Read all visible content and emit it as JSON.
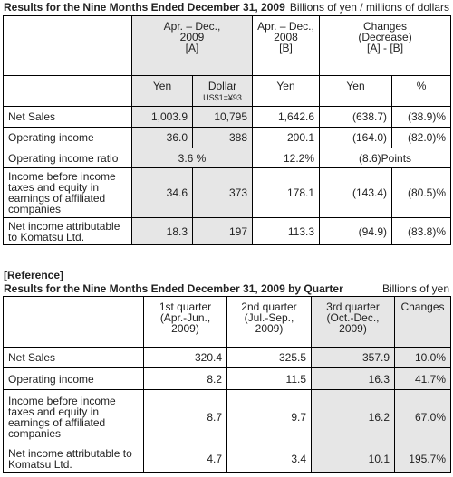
{
  "header": {
    "title": "Results for the Nine Months Ended December 31, 2009",
    "unit": "Billions of yen / millions of dollars"
  },
  "table1": {
    "columns": [
      "Apr. – Dec.,\n2009\n[A]",
      "Apr. – Dec.,\n2008\n[B]",
      "Changes\n(Decrease)\n[A] - [B]"
    ],
    "subcolumns": [
      "Yen",
      "Dollar",
      "Yen",
      "Yen",
      "%"
    ],
    "rate": "US$1=¥93",
    "rows": [
      [
        "Net Sales",
        "1,003.9",
        "10,795",
        "1,642.6",
        "(638.7)",
        "(38.9)%"
      ],
      [
        "Operating income",
        "36.0",
        "388",
        "200.1",
        "(164.0)",
        "(82.0)%"
      ],
      [
        "Operating income ratio",
        "3.6 %",
        "12.2%",
        "(8.6)Points"
      ],
      [
        "Income before income\ntaxes and equity in\nearnings of affiliated\ncompanies",
        "34.6",
        "373",
        "178.1",
        "(143.4)",
        "(80.5)%"
      ],
      [
        "Net income attributable\nto Komatsu Ltd.",
        "18.3",
        "197",
        "113.3",
        "(94.9)",
        "(83.8)%"
      ]
    ]
  },
  "reference": {
    "label": "[Reference]",
    "title": "Results for the Nine Months Ended December 31, 2009 by Quarter",
    "unit": "Billions of yen"
  },
  "table2": {
    "columns": [
      "1st quarter\n(Apr.-Jun.,\n2009)",
      "2nd quarter\n(Jul.-Sep.,\n2009)",
      "3rd quarter\n(Oct.-Dec.,\n2009)",
      "Changes"
    ],
    "rows": [
      [
        "Net Sales",
        "320.4",
        "325.5",
        "357.9",
        "10.0%"
      ],
      [
        "Operating income",
        "8.2",
        "11.5",
        "16.3",
        "41.7%"
      ],
      [
        "Income before income\ntaxes and equity in\nearnings of affiliated\ncompanies",
        "8.7",
        "9.7",
        "16.2",
        "67.0%"
      ],
      [
        "Net income attributable to\nKomatsu Ltd.",
        "4.7",
        "3.4",
        "10.1",
        "195.7%"
      ]
    ]
  }
}
